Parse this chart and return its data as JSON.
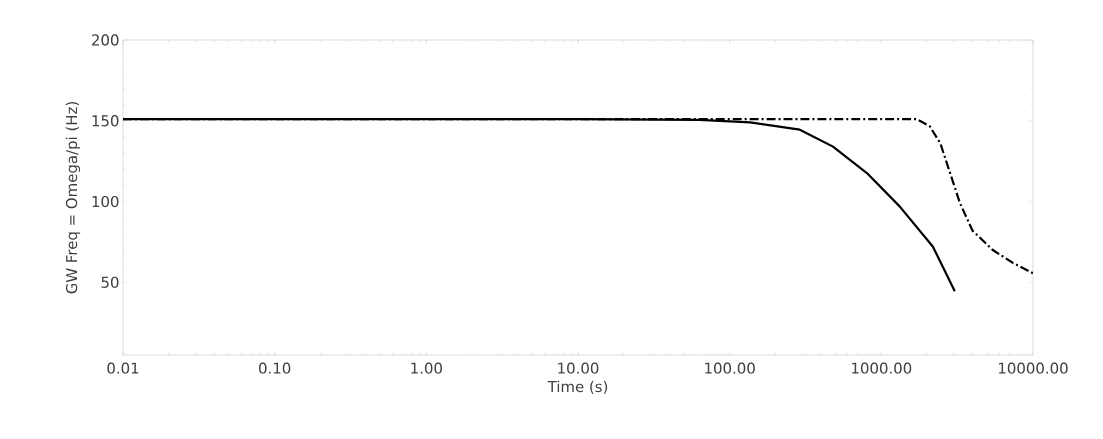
{
  "chart_data": {
    "type": "line",
    "xlabel": "Time (s)",
    "ylabel": "GW Freq = Omega/pi (Hz)",
    "log": "x",
    "xlim": [
      0.01,
      10000
    ],
    "ylim": [
      5,
      200
    ],
    "xticks": [
      {
        "value": 0.01,
        "label": "0.01"
      },
      {
        "value": 0.1,
        "label": "0.10"
      },
      {
        "value": 1,
        "label": "1.00"
      },
      {
        "value": 10,
        "label": "10.00"
      },
      {
        "value": 100,
        "label": "100.00"
      },
      {
        "value": 1000,
        "label": "1000.00"
      },
      {
        "value": 10000,
        "label": "10000.00"
      }
    ],
    "yticks": [
      50,
      100,
      150,
      200
    ],
    "grid": false,
    "series": [
      {
        "color": "#000000",
        "line_style": "solid",
        "x": [
          0.01,
          1,
          10,
          63,
          136,
          290,
          480,
          803,
          1320,
          2190,
          3050
        ],
        "values": [
          151,
          151,
          151,
          150.5,
          149,
          144.5,
          134,
          117.6,
          97,
          72,
          44.4
        ]
      },
      {
        "color": "#000000",
        "line_style": "dashdot",
        "x": [
          0.01,
          1,
          100,
          1715,
          2090,
          2450,
          2840,
          3300,
          3990,
          5430,
          7370,
          10000
        ],
        "values": [
          151,
          151,
          151,
          151,
          146.5,
          136,
          117.6,
          99,
          82,
          70,
          62,
          55.6
        ]
      }
    ]
  }
}
